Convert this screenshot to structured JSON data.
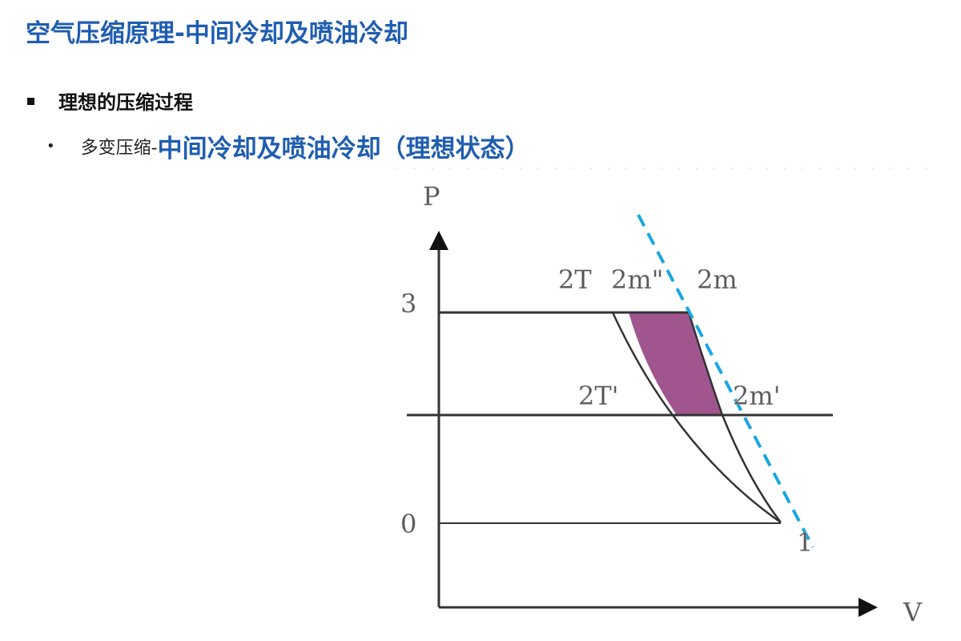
{
  "title": "空气压缩原理-中间冷却及喷油冷却",
  "bullet1": "理想的压缩过程",
  "bullet2": {
    "prefix": "多变压缩-",
    "emphasis": "中间冷却及喷油冷却（理想状态）"
  },
  "diagram": {
    "axis_y": "P",
    "axis_x": "V",
    "point_labels": {
      "p3": "3",
      "p0": "0",
      "p1": "1",
      "t2": "2T",
      "m2pp": "2m\"",
      "m2": "2m",
      "t2p": "2T'",
      "m2p": "2m'"
    },
    "colors": {
      "fill_region": "#a0558f",
      "dashed_line": "#1aa7e0",
      "axes": "#333333"
    }
  }
}
